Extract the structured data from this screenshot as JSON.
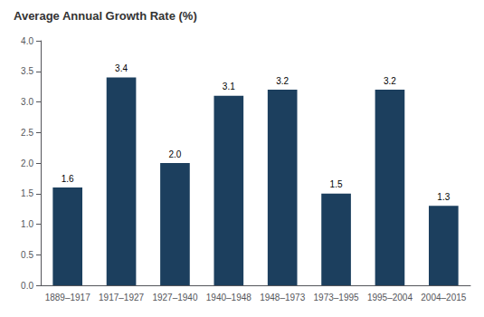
{
  "chart_data": {
    "type": "bar",
    "title": "Average Annual Growth Rate (%)",
    "categories": [
      "1889–1917",
      "1917–1927",
      "1927–1940",
      "1940–1948",
      "1948–1973",
      "1973–1995",
      "1995–2004",
      "2004–2015"
    ],
    "values": [
      1.6,
      3.4,
      2.0,
      3.1,
      3.2,
      1.5,
      3.2,
      1.3
    ],
    "value_labels": [
      "1.6",
      "3.4",
      "2.0",
      "3.1",
      "3.2",
      "1.5",
      "3.2",
      "1.3"
    ],
    "color": "#1c3f5e",
    "ylim": [
      0,
      4.0
    ],
    "yticks": [
      {
        "value": 0,
        "label": "0.0"
      },
      0.5,
      {
        "value": 1,
        "label": "1.0"
      },
      1.5,
      {
        "value": 2,
        "label": "2.0"
      },
      2.5,
      {
        "value": 3,
        "label": "3.0"
      },
      3.5,
      {
        "value": 4,
        "label": "4.0"
      }
    ],
    "grid": false,
    "data_labels": true
  }
}
